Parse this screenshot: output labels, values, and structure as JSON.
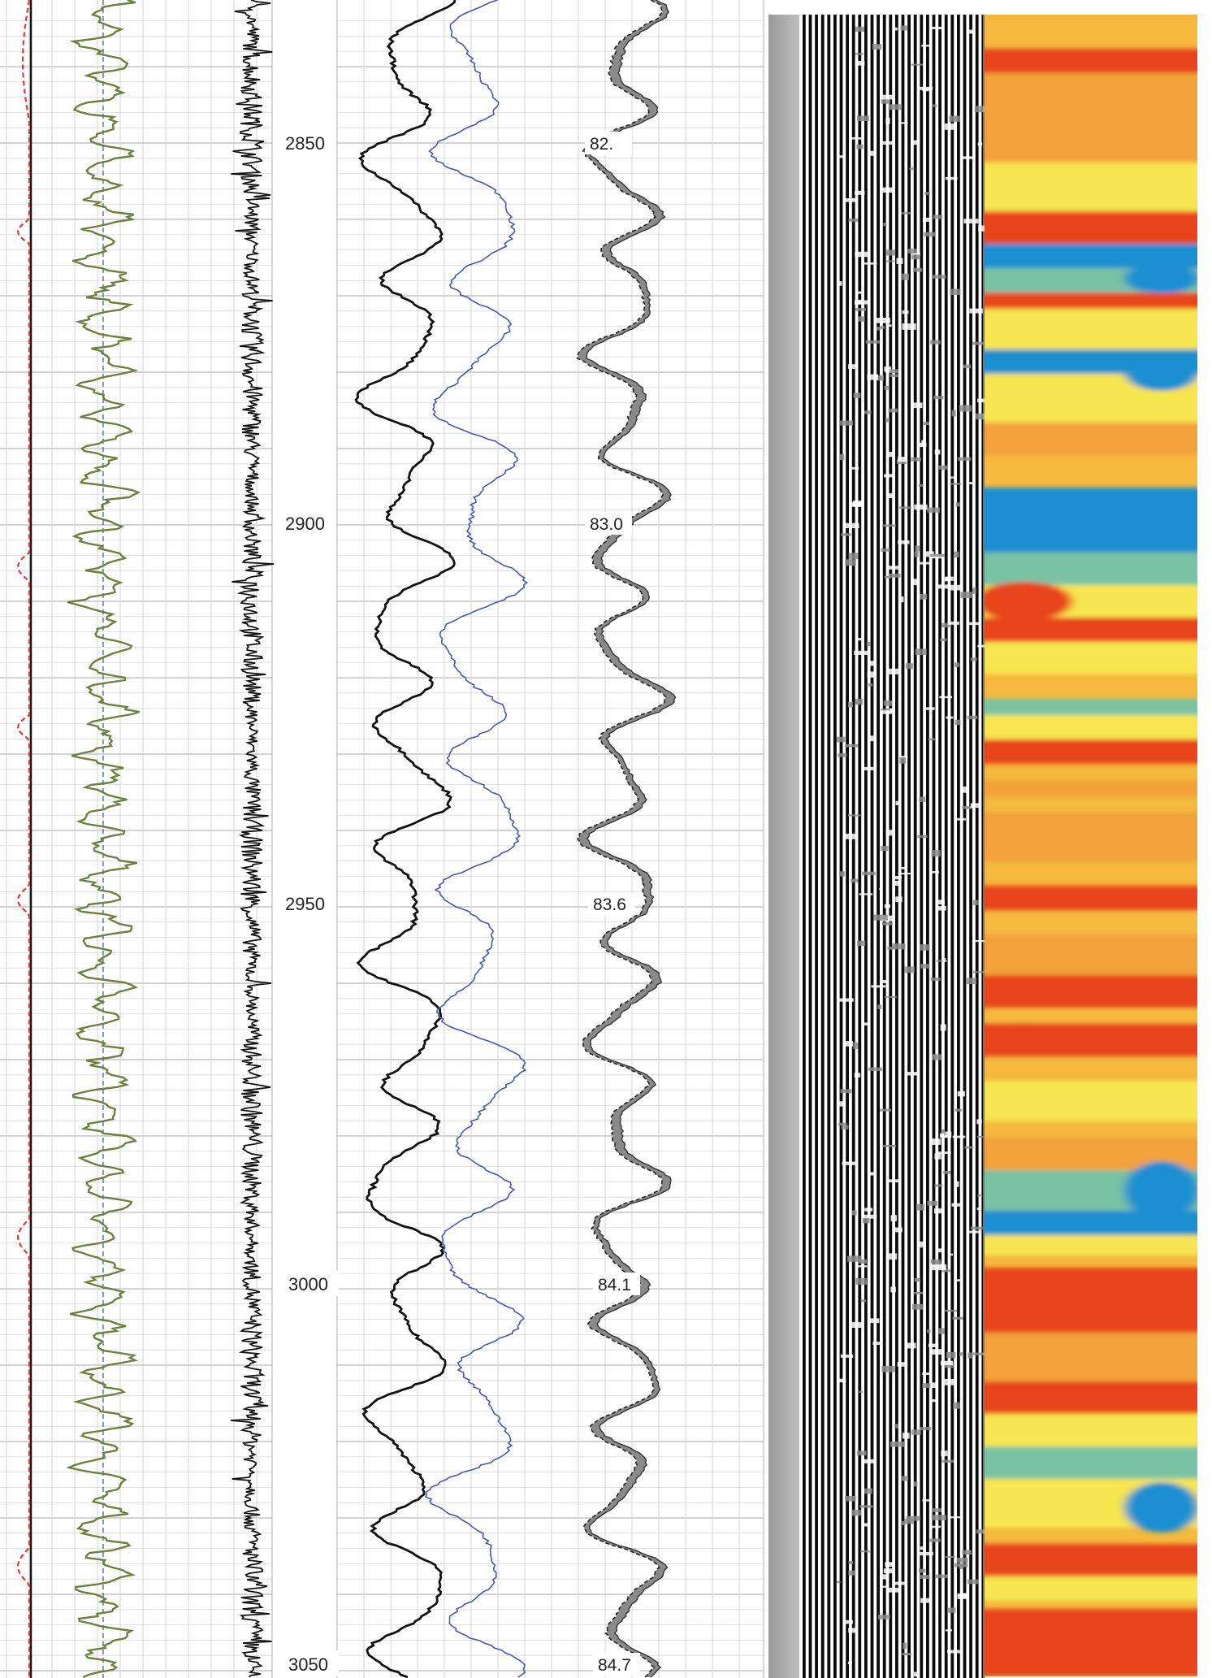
{
  "chart_data": {
    "type": "well-log",
    "depth_range": [
      2834,
      3053
    ],
    "depth_ticks": [
      "2850",
      "2900",
      "2950",
      "3000",
      "3050"
    ],
    "depth_tick_values": [
      2850,
      2900,
      2950,
      3000,
      3050
    ],
    "temperature_labels": [
      "82.",
      "83.0",
      "83.6",
      "84.1",
      "84.7"
    ],
    "temperature_label_depths": [
      2850,
      2900,
      2950,
      3000,
      3050
    ],
    "tracks": [
      {
        "name": "",
        "style": "dashed",
        "color": "#e03a3a"
      },
      {
        "name": "",
        "style": "solid",
        "color": "#6b7f3e"
      },
      {
        "name": "",
        "style": "spiky",
        "color": "#111111"
      },
      {
        "name": "",
        "style": "solid",
        "color": "#111111"
      },
      {
        "name": "",
        "style": "solid",
        "color": "#4a56a8"
      },
      {
        "name": "",
        "style": "shaded",
        "color": "#555555"
      },
      {
        "name": "",
        "style": "waveform-image",
        "color": "#000000"
      },
      {
        "name": "",
        "style": "heatmap-image",
        "color": "#f06a24"
      }
    ],
    "heatmap_palette": [
      "#e8441f",
      "#f3a23a",
      "#f7e64f",
      "#79c2a4",
      "#1a8fd1"
    ],
    "grid": true
  }
}
